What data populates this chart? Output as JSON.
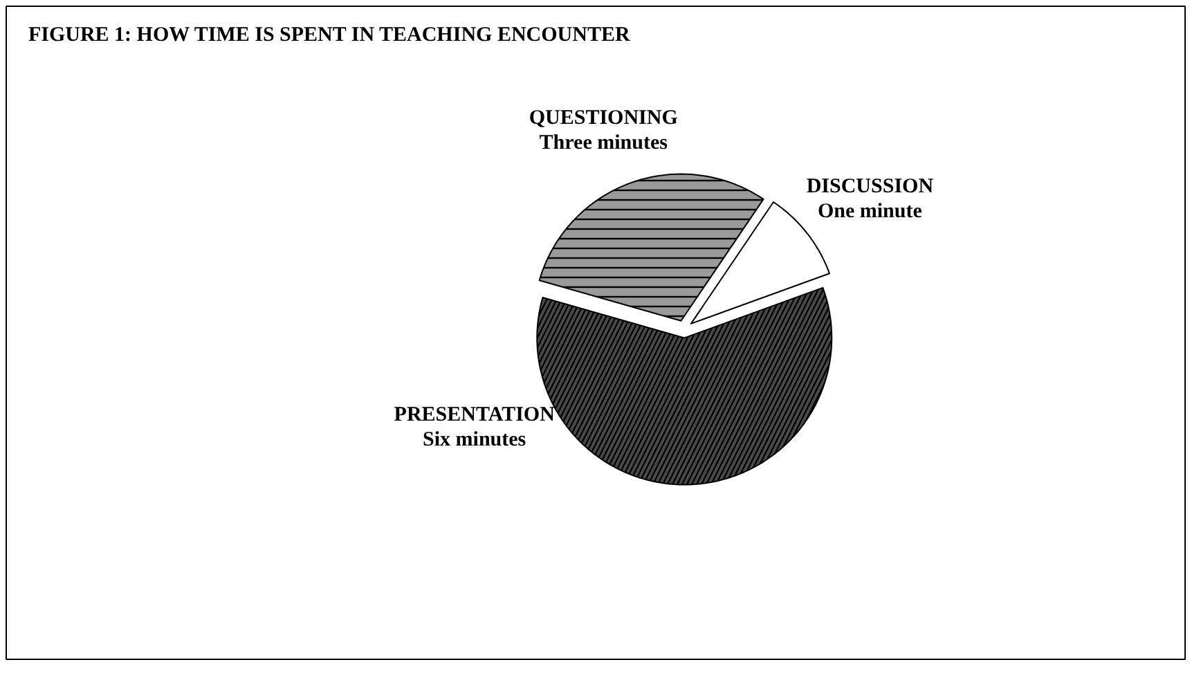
{
  "chart_data": {
    "type": "pie",
    "title": "FIGURE 1: HOW TIME IS SPENT IN TEACHING ENCOUNTER",
    "categories": [
      "DISCUSSION",
      "QUESTIONING",
      "PRESENTATION"
    ],
    "values": [
      10,
      30,
      60
    ],
    "value_labels": [
      "One minute",
      "Three minutes",
      "Six minutes"
    ],
    "colors": [
      "#ffffff",
      "#9a9a9a",
      "#4a4a4a"
    ]
  }
}
